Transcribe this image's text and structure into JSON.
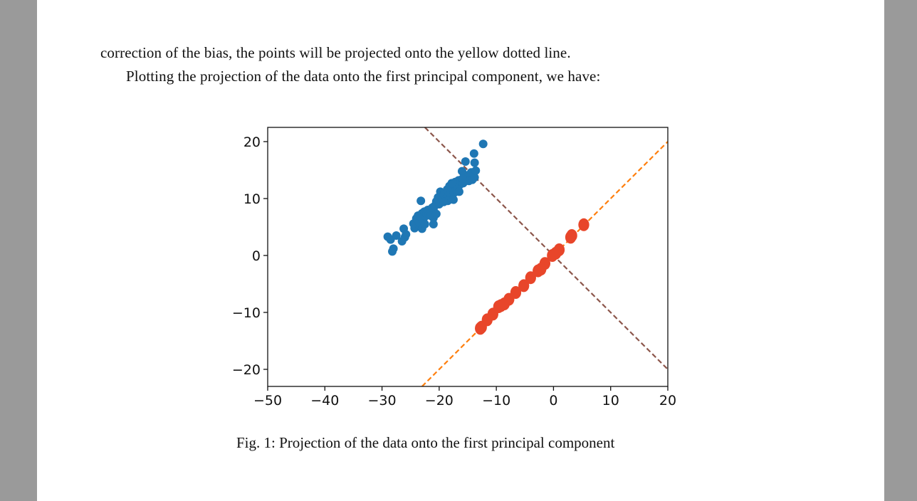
{
  "text": {
    "line1": "correction of the bias, the points will be projected onto the yellow dotted line.",
    "line2": "Plotting the projection of the data onto the first principal component, we have:",
    "caption": "Fig. 1: Projection of the data onto the first principal component"
  },
  "colors": {
    "page_bg": "#ffffff",
    "outer_bg": "#9a9a9a",
    "data_points": "#1f77b4",
    "projected_points": "#e8462a",
    "principal_line": "#ff7f0e",
    "orthogonal_line": "#8c564b"
  },
  "chart_data": {
    "type": "scatter",
    "xlim": [
      -50,
      20
    ],
    "ylim": [
      -23,
      22.5
    ],
    "x_ticks": [
      -50,
      -40,
      -30,
      -20,
      -10,
      0,
      10,
      20
    ],
    "x_tick_labels": [
      "−50",
      "−40",
      "−30",
      "−20",
      "−10",
      "0",
      "10",
      "20"
    ],
    "y_ticks": [
      20,
      10,
      0,
      -10,
      -20
    ],
    "y_tick_labels": [
      "20",
      "10",
      "0",
      "−10",
      "−20"
    ],
    "grid": false,
    "series": [
      {
        "kind": "scatter",
        "color": "#1f77b4",
        "marker_size": 6,
        "points": [
          [
            -29,
            3.3
          ],
          [
            -28.5,
            2.8
          ],
          [
            -28,
            1.2
          ],
          [
            -28.2,
            0.7
          ],
          [
            -27.5,
            3.5
          ],
          [
            -26.5,
            2.5
          ],
          [
            -26,
            3.2
          ],
          [
            -26.2,
            4.7
          ],
          [
            -25.8,
            3.7
          ],
          [
            -24.3,
            4.8
          ],
          [
            -24.5,
            5.6
          ],
          [
            -24,
            6.5
          ],
          [
            -23.7,
            7.0
          ],
          [
            -23.5,
            5.8
          ],
          [
            -23.2,
            6.8
          ],
          [
            -23,
            7.4
          ],
          [
            -22.8,
            6.2
          ],
          [
            -22.6,
            7.7
          ],
          [
            -22.4,
            6.9
          ],
          [
            -22.2,
            7.3
          ],
          [
            -22,
            8.0
          ],
          [
            -21.8,
            7.2
          ],
          [
            -21.5,
            7.5
          ],
          [
            -21.2,
            8.4
          ],
          [
            -21,
            8.0
          ],
          [
            -23.2,
            9.6
          ],
          [
            -23,
            4.7
          ],
          [
            -21,
            5.5
          ],
          [
            -21,
            6.6
          ],
          [
            -20.5,
            9.5
          ],
          [
            -20.8,
            8.7
          ],
          [
            -20.2,
            10.2
          ],
          [
            -20,
            9.0
          ],
          [
            -19.8,
            11.2
          ],
          [
            -19.6,
            10.5
          ],
          [
            -19.4,
            9.8
          ],
          [
            -19.2,
            10.7
          ],
          [
            -19,
            11.0
          ],
          [
            -18.8,
            10.0
          ],
          [
            -18.6,
            11.6
          ],
          [
            -18.4,
            11.3
          ],
          [
            -18.2,
            12.2
          ],
          [
            -18,
            10.8
          ],
          [
            -17.8,
            11.8
          ],
          [
            -17.6,
            12.5
          ],
          [
            -17.4,
            11.0
          ],
          [
            -17.2,
            12.9
          ],
          [
            -17,
            11.6
          ],
          [
            -16.8,
            12.0
          ],
          [
            -16.6,
            13.2
          ],
          [
            -16.4,
            12.4
          ],
          [
            -16.2,
            13.0
          ],
          [
            -16,
            14.8
          ],
          [
            -15.8,
            12.7
          ],
          [
            -15.6,
            14.2
          ],
          [
            -15.4,
            16.5
          ],
          [
            -15,
            13.9
          ],
          [
            -14.8,
            13.1
          ],
          [
            -14.4,
            14.6
          ],
          [
            -14.2,
            13.3
          ],
          [
            -13.8,
            13.7
          ],
          [
            -13.6,
            14.9
          ],
          [
            -13.8,
            16.3
          ],
          [
            -13.9,
            17.9
          ],
          [
            -12.3,
            19.6
          ],
          [
            -18.5,
            9.6
          ],
          [
            -17.5,
            9.8
          ],
          [
            -19.2,
            9.4
          ],
          [
            -21.5,
            7.0
          ],
          [
            -22.5,
            5.5
          ],
          [
            -20.5,
            7.3
          ],
          [
            -16.5,
            11.2
          ],
          [
            -17.8,
            12.7
          ],
          [
            -15.9,
            13.5
          ]
        ]
      },
      {
        "kind": "scatter",
        "color": "#e8462a",
        "marker_size": 9,
        "points": [
          [
            -12.8,
            -12.8
          ],
          [
            -11.6,
            -11.3
          ],
          [
            -10.6,
            -10.3
          ],
          [
            -9.6,
            -9.0
          ],
          [
            -8.6,
            -8.5
          ],
          [
            -7.8,
            -7.7
          ],
          [
            -6.6,
            -6.5
          ],
          [
            -5.2,
            -5.3
          ],
          [
            -4.0,
            -3.9
          ],
          [
            -2.7,
            -2.7
          ],
          [
            -1.5,
            -1.4
          ],
          [
            -0.2,
            0.0
          ],
          [
            1.0,
            1.0
          ],
          [
            3.0,
            3.2
          ],
          [
            5.3,
            5.4
          ],
          [
            -12.6,
            -12.6
          ],
          [
            -9.2,
            -8.8
          ],
          [
            -2.2,
            -2.4
          ],
          [
            0.4,
            0.4
          ],
          [
            3.2,
            3.5
          ]
        ]
      },
      {
        "kind": "line",
        "dashed": true,
        "color": "#ff7f0e",
        "points": [
          [
            -23,
            -23
          ],
          [
            20,
            20
          ]
        ]
      },
      {
        "kind": "line",
        "dashed": true,
        "color": "#8c564b",
        "points": [
          [
            -22.5,
            22.5
          ],
          [
            20,
            -20
          ]
        ]
      }
    ]
  }
}
